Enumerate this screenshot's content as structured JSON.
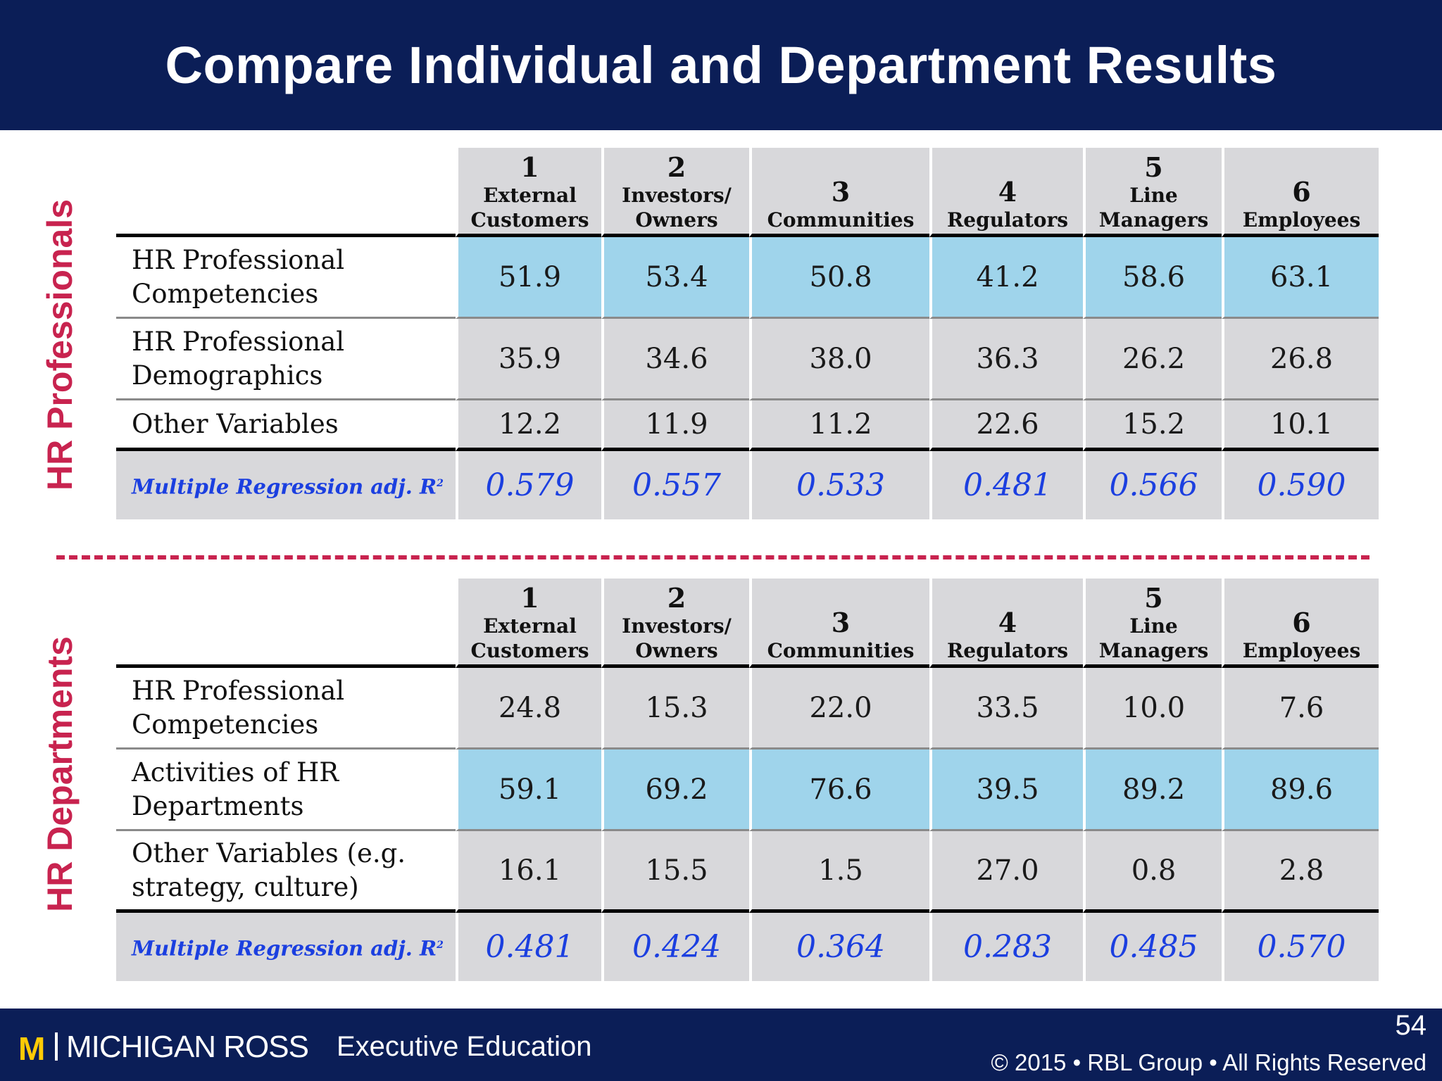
{
  "title": "Compare Individual and Department Results",
  "section_labels": {
    "top": "HR Professionals",
    "bottom": "HR Departments"
  },
  "columns": [
    {
      "num": "1",
      "line1": "External",
      "line2": "Customers"
    },
    {
      "num": "2",
      "line1": "Investors/",
      "line2": "Owners"
    },
    {
      "num": "3",
      "line1": "",
      "line2": "Communities"
    },
    {
      "num": "4",
      "line1": "",
      "line2": "Regulators"
    },
    {
      "num": "5",
      "line1": "Line",
      "line2": "Managers"
    },
    {
      "num": "6",
      "line1": "",
      "line2": "Employees"
    }
  ],
  "top_table": {
    "rows": [
      {
        "label1": "HR Professional",
        "label2": "Competencies",
        "values": [
          "51.9",
          "53.4",
          "50.8",
          "41.2",
          "58.6",
          "63.1"
        ]
      },
      {
        "label1": "HR Professional",
        "label2": "Demographics",
        "values": [
          "35.9",
          "34.6",
          "38.0",
          "36.3",
          "26.2",
          "26.8"
        ]
      },
      {
        "label1": "Other Variables",
        "label2": "",
        "values": [
          "12.2",
          "11.9",
          "11.2",
          "22.6",
          "15.2",
          "10.1"
        ]
      }
    ],
    "regression": {
      "label": "Multiple Regression adj. R",
      "sup": "2",
      "values": [
        "0.579",
        "0.557",
        "0.533",
        "0.481",
        "0.566",
        "0.590"
      ]
    }
  },
  "bottom_table": {
    "rows": [
      {
        "label1": "HR Professional",
        "label2": "Competencies",
        "values": [
          "24.8",
          "15.3",
          "22.0",
          "33.5",
          "10.0",
          "7.6"
        ]
      },
      {
        "label1": "Activities of HR",
        "label2": "Departments",
        "values": [
          "59.1",
          "69.2",
          "76.6",
          "39.5",
          "89.2",
          "89.6"
        ]
      },
      {
        "label1": "Other Variables (e.g.",
        "label2": "strategy, culture)",
        "values": [
          "16.1",
          "15.5",
          "1.5",
          "27.0",
          "0.8",
          "2.8"
        ]
      }
    ],
    "regression": {
      "label": "Multiple Regression adj. R",
      "sup": "2",
      "values": [
        "0.481",
        "0.424",
        "0.364",
        "0.283",
        "0.485",
        "0.570"
      ]
    }
  },
  "colors": {
    "navy": "#0b1e57",
    "accent": "#c8234f",
    "highlight": "#9fd4eb",
    "cell_grey": "#d8d8db",
    "regression_blue": "#1b3fe0",
    "maize": "#ffcb05"
  },
  "footer": {
    "logo_m": "M",
    "logo_text": "MICHIGAN ROSS",
    "exec_ed": "Executive Education",
    "page_number": "54",
    "copyright": "© 2015 • RBL Group • All Rights Reserved"
  }
}
